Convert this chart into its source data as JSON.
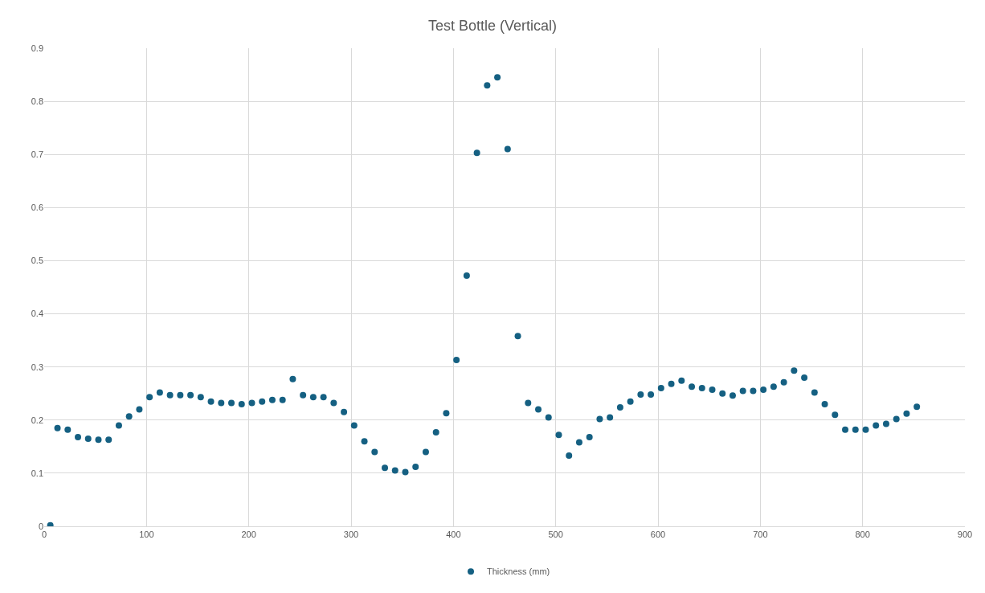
{
  "chart_data": {
    "type": "scatter",
    "title": "Test Bottle (Vertical)",
    "x": [
      6,
      13,
      23,
      33,
      43,
      53,
      63,
      73,
      83,
      93,
      103,
      113,
      123,
      133,
      143,
      153,
      163,
      173,
      183,
      193,
      203,
      213,
      223,
      233,
      243,
      253,
      263,
      273,
      283,
      293,
      303,
      313,
      323,
      333,
      343,
      353,
      363,
      373,
      383,
      393,
      403,
      413,
      423,
      433,
      443,
      453,
      463,
      473,
      483,
      493,
      503,
      513,
      523,
      533,
      543,
      553,
      563,
      573,
      583,
      593,
      603,
      613,
      623,
      633,
      643,
      653,
      663,
      673,
      683,
      693,
      703,
      713,
      723,
      733,
      743,
      753,
      763,
      773,
      783,
      793,
      803,
      813,
      823,
      833,
      843,
      853
    ],
    "series": [
      {
        "name": "Thickness (mm)",
        "color": "#156082",
        "values": [
          0.002,
          0.185,
          0.182,
          0.168,
          0.165,
          0.163,
          0.163,
          0.19,
          0.207,
          0.22,
          0.243,
          0.252,
          0.247,
          0.247,
          0.247,
          0.243,
          0.235,
          0.232,
          0.232,
          0.23,
          0.232,
          0.235,
          0.238,
          0.238,
          0.277,
          0.247,
          0.243,
          0.243,
          0.232,
          0.215,
          0.19,
          0.16,
          0.14,
          0.11,
          0.105,
          0.102,
          0.112,
          0.14,
          0.177,
          0.213,
          0.313,
          0.472,
          0.703,
          0.83,
          0.845,
          0.71,
          0.358,
          0.232,
          0.22,
          0.205,
          0.172,
          0.133,
          0.158,
          0.168,
          0.202,
          0.205,
          0.224,
          0.235,
          0.248,
          0.248,
          0.26,
          0.268,
          0.274,
          0.263,
          0.26,
          0.257,
          0.25,
          0.246,
          0.255,
          0.255,
          0.257,
          0.263,
          0.271,
          0.293,
          0.28,
          0.252,
          0.23,
          0.21,
          0.182,
          0.182,
          0.182,
          0.19,
          0.193,
          0.202,
          0.212,
          0.225
        ]
      }
    ],
    "xlim": [
      0,
      900
    ],
    "xticks": [
      0,
      100,
      200,
      300,
      400,
      500,
      600,
      700,
      800,
      900
    ],
    "ylim": [
      0,
      0.9
    ],
    "yticks": [
      0,
      0.1,
      0.2,
      0.3,
      0.4,
      0.5,
      0.6,
      0.7,
      0.8,
      0.9
    ],
    "grid": true,
    "legend": "bottom",
    "marker": "circle"
  }
}
